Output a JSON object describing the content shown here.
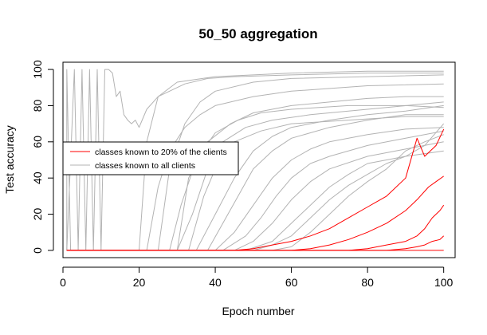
{
  "chart_data": {
    "type": "line",
    "title": "50_50 aggregation",
    "xlabel": "Epoch number",
    "ylabel": "Test accuracy",
    "xlim": [
      0,
      103
    ],
    "ylim": [
      -4,
      104
    ],
    "x_ticks": [
      0,
      20,
      40,
      60,
      80,
      100
    ],
    "y_ticks": [
      0,
      20,
      40,
      60,
      80,
      100
    ],
    "grid": false,
    "legend": {
      "placement": "left",
      "entries": [
        {
          "label": "classes known to 20% of the clients",
          "color": "#ff0000"
        },
        {
          "label": "classes known to all clients",
          "color": "#b3b3b3"
        }
      ]
    },
    "series": [
      {
        "group": "classes known to all clients",
        "color": "#b3b3b3",
        "points": [
          [
            1,
            0
          ],
          [
            1,
            100
          ],
          [
            2,
            0
          ],
          [
            20,
            0
          ],
          [
            22,
            60
          ],
          [
            25,
            85
          ],
          [
            30,
            93
          ],
          [
            40,
            96
          ],
          [
            60,
            98
          ],
          [
            80,
            99
          ],
          [
            100,
            99
          ]
        ]
      },
      {
        "group": "classes known to all clients",
        "color": "#b3b3b3",
        "points": [
          [
            1,
            0
          ],
          [
            3,
            100
          ],
          [
            4,
            0
          ],
          [
            5,
            100
          ],
          [
            6,
            0
          ],
          [
            7,
            100
          ],
          [
            8,
            0
          ],
          [
            9,
            100
          ],
          [
            10,
            0
          ],
          [
            11,
            100
          ],
          [
            12,
            100
          ],
          [
            13,
            98
          ],
          [
            14,
            85
          ],
          [
            15,
            88
          ],
          [
            16,
            75
          ],
          [
            17,
            72
          ],
          [
            18,
            70
          ],
          [
            19,
            72
          ],
          [
            20,
            68
          ],
          [
            22,
            78
          ],
          [
            25,
            85
          ],
          [
            28,
            88
          ],
          [
            32,
            92
          ],
          [
            38,
            95
          ],
          [
            45,
            96
          ],
          [
            60,
            97
          ],
          [
            80,
            98
          ],
          [
            100,
            98
          ]
        ]
      },
      {
        "group": "classes known to all clients",
        "color": "#b3b3b3",
        "points": [
          [
            1,
            0
          ],
          [
            25,
            0
          ],
          [
            28,
            45
          ],
          [
            32,
            70
          ],
          [
            36,
            82
          ],
          [
            40,
            88
          ],
          [
            50,
            93
          ],
          [
            60,
            95
          ],
          [
            80,
            96
          ],
          [
            100,
            97
          ]
        ]
      },
      {
        "group": "classes known to all clients",
        "color": "#b3b3b3",
        "points": [
          [
            1,
            0
          ],
          [
            22,
            0
          ],
          [
            25,
            35
          ],
          [
            28,
            55
          ],
          [
            32,
            68
          ],
          [
            36,
            75
          ],
          [
            40,
            80
          ],
          [
            50,
            85
          ],
          [
            60,
            88
          ],
          [
            80,
            91
          ],
          [
            100,
            92
          ]
        ]
      },
      {
        "group": "classes known to all clients",
        "color": "#b3b3b3",
        "points": [
          [
            1,
            0
          ],
          [
            30,
            0
          ],
          [
            33,
            40
          ],
          [
            38,
            60
          ],
          [
            44,
            70
          ],
          [
            50,
            76
          ],
          [
            60,
            80
          ],
          [
            70,
            82
          ],
          [
            80,
            84
          ],
          [
            90,
            85
          ],
          [
            100,
            85
          ]
        ]
      },
      {
        "group": "classes known to all clients",
        "color": "#b3b3b3",
        "points": [
          [
            1,
            0
          ],
          [
            35,
            0
          ],
          [
            40,
            20
          ],
          [
            45,
            40
          ],
          [
            50,
            55
          ],
          [
            55,
            63
          ],
          [
            60,
            68
          ],
          [
            70,
            72
          ],
          [
            80,
            75
          ],
          [
            90,
            77
          ],
          [
            100,
            80
          ]
        ]
      },
      {
        "group": "classes known to all clients",
        "color": "#b3b3b3",
        "points": [
          [
            1,
            0
          ],
          [
            38,
            0
          ],
          [
            42,
            15
          ],
          [
            46,
            30
          ],
          [
            50,
            45
          ],
          [
            55,
            55
          ],
          [
            60,
            62
          ],
          [
            70,
            68
          ],
          [
            80,
            72
          ],
          [
            90,
            75
          ],
          [
            100,
            75
          ]
        ]
      },
      {
        "group": "classes known to all clients",
        "color": "#b3b3b3",
        "points": [
          [
            1,
            0
          ],
          [
            40,
            0
          ],
          [
            45,
            10
          ],
          [
            50,
            25
          ],
          [
            55,
            40
          ],
          [
            60,
            50
          ],
          [
            65,
            56
          ],
          [
            70,
            60
          ],
          [
            80,
            64
          ],
          [
            90,
            67
          ],
          [
            100,
            68
          ]
        ]
      },
      {
        "group": "classes known to all clients",
        "color": "#b3b3b3",
        "points": [
          [
            1,
            0
          ],
          [
            42,
            0
          ],
          [
            48,
            8
          ],
          [
            52,
            18
          ],
          [
            56,
            30
          ],
          [
            60,
            40
          ],
          [
            65,
            48
          ],
          [
            70,
            52
          ],
          [
            80,
            58
          ],
          [
            90,
            62
          ],
          [
            100,
            66
          ]
        ]
      },
      {
        "group": "classes known to all clients",
        "color": "#b3b3b3",
        "points": [
          [
            1,
            0
          ],
          [
            45,
            0
          ],
          [
            50,
            5
          ],
          [
            55,
            15
          ],
          [
            60,
            28
          ],
          [
            65,
            38
          ],
          [
            70,
            45
          ],
          [
            80,
            52
          ],
          [
            90,
            56
          ],
          [
            100,
            60
          ]
        ]
      },
      {
        "group": "classes known to all clients",
        "color": "#b3b3b3",
        "points": [
          [
            1,
            0
          ],
          [
            48,
            0
          ],
          [
            55,
            5
          ],
          [
            60,
            15
          ],
          [
            65,
            25
          ],
          [
            70,
            35
          ],
          [
            75,
            42
          ],
          [
            80,
            48
          ],
          [
            90,
            52
          ],
          [
            100,
            55
          ]
        ]
      },
      {
        "group": "classes known to all clients",
        "color": "#b3b3b3",
        "points": [
          [
            1,
            0
          ],
          [
            30,
            0
          ],
          [
            34,
            20
          ],
          [
            38,
            45
          ],
          [
            42,
            60
          ],
          [
            48,
            68
          ],
          [
            55,
            72
          ],
          [
            65,
            75
          ],
          [
            80,
            78
          ],
          [
            100,
            82
          ]
        ]
      },
      {
        "group": "classes known to all clients",
        "color": "#b3b3b3",
        "points": [
          [
            1,
            0
          ],
          [
            33,
            0
          ],
          [
            37,
            30
          ],
          [
            41,
            50
          ],
          [
            45,
            60
          ],
          [
            52,
            66
          ],
          [
            60,
            70
          ],
          [
            75,
            72
          ],
          [
            90,
            74
          ],
          [
            100,
            74
          ]
        ]
      },
      {
        "group": "classes known to all clients",
        "color": "#b3b3b3",
        "points": [
          [
            1,
            0
          ],
          [
            50,
            0
          ],
          [
            55,
            3
          ],
          [
            60,
            8
          ],
          [
            65,
            18
          ],
          [
            70,
            28
          ],
          [
            75,
            36
          ],
          [
            80,
            42
          ],
          [
            85,
            48
          ],
          [
            90,
            52
          ],
          [
            95,
            58
          ],
          [
            100,
            70
          ]
        ]
      },
      {
        "group": "classes known to all clients",
        "color": "#b3b3b3",
        "points": [
          [
            1,
            0
          ],
          [
            55,
            0
          ],
          [
            60,
            2
          ],
          [
            65,
            10
          ],
          [
            70,
            20
          ],
          [
            75,
            30
          ],
          [
            80,
            38
          ],
          [
            85,
            45
          ],
          [
            90,
            55
          ],
          [
            95,
            60
          ],
          [
            100,
            64
          ]
        ]
      },
      {
        "group": "classes known to all clients",
        "color": "#b3b3b3",
        "points": [
          [
            1,
            0
          ],
          [
            28,
            0
          ],
          [
            31,
            25
          ],
          [
            35,
            50
          ],
          [
            40,
            65
          ],
          [
            46,
            72
          ],
          [
            52,
            76
          ],
          [
            60,
            78
          ],
          [
            75,
            80
          ],
          [
            90,
            80
          ],
          [
            100,
            79
          ]
        ]
      },
      {
        "group": "classes known to 20% of the clients",
        "color": "#ff0000",
        "points": [
          [
            1,
            0
          ],
          [
            45,
            0
          ],
          [
            50,
            1
          ],
          [
            55,
            3
          ],
          [
            60,
            5
          ],
          [
            65,
            8
          ],
          [
            70,
            12
          ],
          [
            75,
            18
          ],
          [
            80,
            24
          ],
          [
            85,
            30
          ],
          [
            90,
            40
          ],
          [
            93,
            62
          ],
          [
            95,
            52
          ],
          [
            98,
            58
          ],
          [
            100,
            67
          ]
        ]
      },
      {
        "group": "classes known to 20% of the clients",
        "color": "#ff0000",
        "points": [
          [
            1,
            0
          ],
          [
            60,
            0
          ],
          [
            65,
            1
          ],
          [
            70,
            3
          ],
          [
            75,
            6
          ],
          [
            80,
            10
          ],
          [
            85,
            15
          ],
          [
            90,
            22
          ],
          [
            93,
            28
          ],
          [
            96,
            35
          ],
          [
            98,
            38
          ],
          [
            100,
            41
          ]
        ]
      },
      {
        "group": "classes known to 20% of the clients",
        "color": "#ff0000",
        "points": [
          [
            1,
            0
          ],
          [
            75,
            0
          ],
          [
            80,
            1
          ],
          [
            85,
            3
          ],
          [
            90,
            5
          ],
          [
            93,
            8
          ],
          [
            95,
            12
          ],
          [
            97,
            18
          ],
          [
            99,
            22
          ],
          [
            100,
            25
          ]
        ]
      },
      {
        "group": "classes known to 20% of the clients",
        "color": "#ff0000",
        "points": [
          [
            1,
            0
          ],
          [
            85,
            0
          ],
          [
            90,
            1
          ],
          [
            93,
            2
          ],
          [
            95,
            3
          ],
          [
            97,
            5
          ],
          [
            99,
            6
          ],
          [
            100,
            8
          ]
        ]
      },
      {
        "group": "classes known to 20% of the clients",
        "color": "#ff0000",
        "points": [
          [
            1,
            0
          ],
          [
            100,
            0
          ]
        ]
      }
    ]
  }
}
